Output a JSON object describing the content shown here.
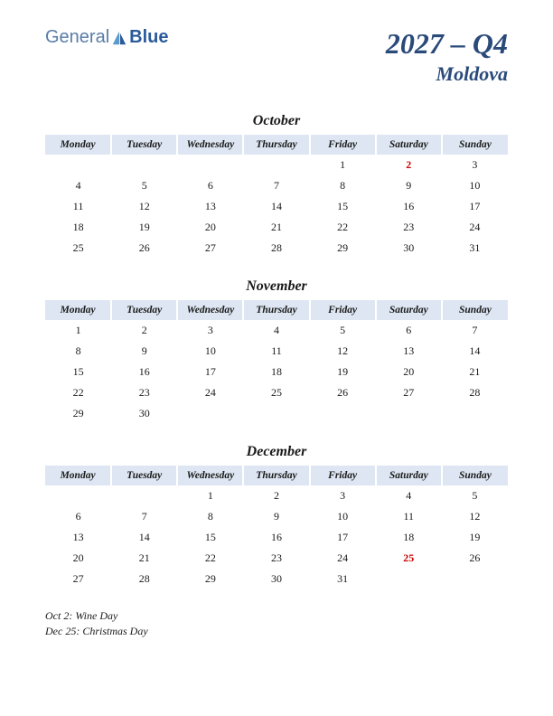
{
  "logo": {
    "part1": "General",
    "part2": "Blue"
  },
  "title": {
    "main": "2027 – Q4",
    "sub": "Moldova"
  },
  "weekdays": [
    "Monday",
    "Tuesday",
    "Wednesday",
    "Thursday",
    "Friday",
    "Saturday",
    "Sunday"
  ],
  "months": [
    {
      "name": "October",
      "weeks": [
        [
          "",
          "",
          "",
          "",
          "1",
          "2",
          "3"
        ],
        [
          "4",
          "5",
          "6",
          "7",
          "8",
          "9",
          "10"
        ],
        [
          "11",
          "12",
          "13",
          "14",
          "15",
          "16",
          "17"
        ],
        [
          "18",
          "19",
          "20",
          "21",
          "22",
          "23",
          "24"
        ],
        [
          "25",
          "26",
          "27",
          "28",
          "29",
          "30",
          "31"
        ]
      ],
      "holidays": [
        "2"
      ]
    },
    {
      "name": "November",
      "weeks": [
        [
          "1",
          "2",
          "3",
          "4",
          "5",
          "6",
          "7"
        ],
        [
          "8",
          "9",
          "10",
          "11",
          "12",
          "13",
          "14"
        ],
        [
          "15",
          "16",
          "17",
          "18",
          "19",
          "20",
          "21"
        ],
        [
          "22",
          "23",
          "24",
          "25",
          "26",
          "27",
          "28"
        ],
        [
          "29",
          "30",
          "",
          "",
          "",
          "",
          ""
        ]
      ],
      "holidays": []
    },
    {
      "name": "December",
      "weeks": [
        [
          "",
          "",
          "1",
          "2",
          "3",
          "4",
          "5"
        ],
        [
          "6",
          "7",
          "8",
          "9",
          "10",
          "11",
          "12"
        ],
        [
          "13",
          "14",
          "15",
          "16",
          "17",
          "18",
          "19"
        ],
        [
          "20",
          "21",
          "22",
          "23",
          "24",
          "25",
          "26"
        ],
        [
          "27",
          "28",
          "29",
          "30",
          "31",
          "",
          ""
        ]
      ],
      "holidays": [
        "25"
      ]
    }
  ],
  "holiday_lines": [
    "Oct 2: Wine Day",
    "Dec 25: Christmas Day"
  ],
  "colors": {
    "header_bg": "#dde6f2",
    "title_color": "#2a4a7a",
    "holiday_color": "#cc0000",
    "text_color": "#1a1a1a",
    "logo_light": "#5a7ca8",
    "logo_dark": "#2a5a9a"
  }
}
